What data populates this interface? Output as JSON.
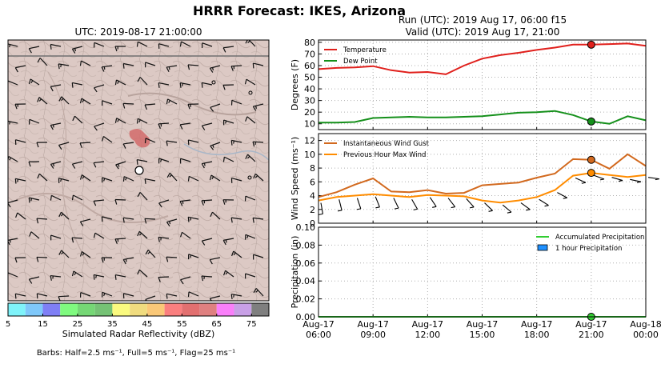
{
  "title": "HRRR Forecast: IKES, Arizona",
  "map": {
    "title": "UTC: 2019-08-17 21:00:00",
    "colorbar": {
      "label": "Simulated Radar Reflectivity (dBZ)",
      "ticks": [
        "5",
        "15",
        "25",
        "35",
        "45",
        "55",
        "65",
        "75"
      ],
      "colors": [
        "#7ff3fa",
        "#7fc8fa",
        "#7f7ff5",
        "#7ffa7f",
        "#75d775",
        "#75c275",
        "#fafa7f",
        "#f0dc7f",
        "#fac878",
        "#fa7f7f",
        "#e27070",
        "#df8080",
        "#fa7ffa",
        "#c8a0e6",
        "#7f7f7f"
      ]
    },
    "barbs_note": "Barbs: Half=2.5 ms⁻¹, Full=5 ms⁻¹, Flag=25 ms⁻¹"
  },
  "panels": {
    "run_title": "Run (UTC): 2019 Aug 17, 06:00 f15",
    "valid_title": "Valid (UTC): 2019 Aug 17, 21:00"
  },
  "chart_data": [
    {
      "type": "line",
      "ylabel": "Degrees (F)",
      "ylim": [
        5,
        82
      ],
      "yticks": [
        10,
        20,
        30,
        40,
        50,
        60,
        70,
        80
      ],
      "legend_position": "top-left",
      "x": [
        6,
        7,
        8,
        9,
        10,
        11,
        12,
        13,
        14,
        15,
        16,
        17,
        18,
        19,
        20,
        21,
        22,
        23,
        24
      ],
      "series": [
        {
          "name": "Temperature",
          "color": "#e0201c",
          "values": [
            57,
            58,
            58.5,
            59.5,
            56,
            54,
            54.5,
            52.5,
            60,
            66,
            69,
            71,
            73.5,
            75.5,
            78,
            78,
            78.5,
            79,
            77
          ]
        },
        {
          "name": "Dew Point",
          "color": "#15901b",
          "values": [
            11,
            11,
            11.5,
            15,
            15.5,
            16,
            15.5,
            15.5,
            16,
            16.5,
            18,
            19.5,
            20,
            21,
            17.5,
            12,
            10,
            16.5,
            13
          ]
        }
      ],
      "valid_marker": {
        "x": 21,
        "values": {
          "Temperature": 78,
          "Dew Point": 12
        }
      }
    },
    {
      "type": "line",
      "ylabel": "Wind Speed (ms⁻¹)",
      "ylim": [
        0,
        13
      ],
      "yticks": [
        0,
        2,
        4,
        6,
        8,
        10,
        12
      ],
      "legend_position": "top-left",
      "x": [
        6,
        7,
        8,
        9,
        10,
        11,
        12,
        13,
        14,
        15,
        16,
        17,
        18,
        19,
        20,
        21,
        22,
        23,
        24
      ],
      "series": [
        {
          "name": "Instantaneous Wind Gust",
          "color": "#d2691e",
          "values": [
            3.8,
            4.5,
            5.6,
            6.5,
            4.6,
            4.5,
            4.8,
            4.3,
            4.4,
            5.5,
            5.7,
            5.9,
            6.6,
            7.2,
            9.3,
            9.2,
            7.9,
            10.0,
            8.3
          ]
        },
        {
          "name": "Previous Hour Max Wind",
          "color": "#ff8c00",
          "values": [
            3.3,
            3.8,
            4.0,
            4.2,
            4.0,
            3.8,
            4.1,
            4.0,
            3.9,
            3.3,
            3.0,
            3.3,
            3.8,
            4.8,
            6.9,
            7.3,
            7.0,
            6.7,
            7.0
          ]
        }
      ],
      "valid_marker": {
        "x": 21,
        "values": {
          "Instantaneous Wind Gust": 9.2,
          "Previous Hour Max Wind": 7.3
        }
      }
    },
    {
      "type": "bar",
      "ylabel": "Precipitation (in)",
      "ylim": [
        0,
        0.1
      ],
      "yticks": [
        "0.00",
        "0.02",
        "0.04",
        "0.06",
        "0.08",
        "0.10"
      ],
      "xticks": [
        {
          "x": 6,
          "line1": "Aug-17",
          "line2": "06:00"
        },
        {
          "x": 9,
          "line1": "Aug-17",
          "line2": "09:00"
        },
        {
          "x": 12,
          "line1": "Aug-17",
          "line2": "12:00"
        },
        {
          "x": 15,
          "line1": "Aug-17",
          "line2": "15:00"
        },
        {
          "x": 18,
          "line1": "Aug-17",
          "line2": "18:00"
        },
        {
          "x": 21,
          "line1": "Aug-17",
          "line2": "21:00"
        },
        {
          "x": 24,
          "line1": "Aug-18",
          "line2": "00:00"
        }
      ],
      "legend_position": "top-right",
      "legend": [
        {
          "name": "Accumulated Precipitation",
          "color": "#32cd32",
          "kind": "line"
        },
        {
          "name": "1 hour Precipitation",
          "color": "#1e90ff",
          "kind": "box"
        }
      ],
      "accumulated": [
        0,
        0,
        0,
        0,
        0,
        0,
        0,
        0,
        0,
        0,
        0,
        0,
        0,
        0,
        0,
        0,
        0,
        0,
        0
      ],
      "hourly": [
        0,
        0,
        0,
        0,
        0,
        0,
        0,
        0,
        0,
        0,
        0,
        0,
        0,
        0,
        0,
        0,
        0,
        0,
        0
      ],
      "valid_marker": {
        "x": 21,
        "value": 0
      }
    }
  ]
}
